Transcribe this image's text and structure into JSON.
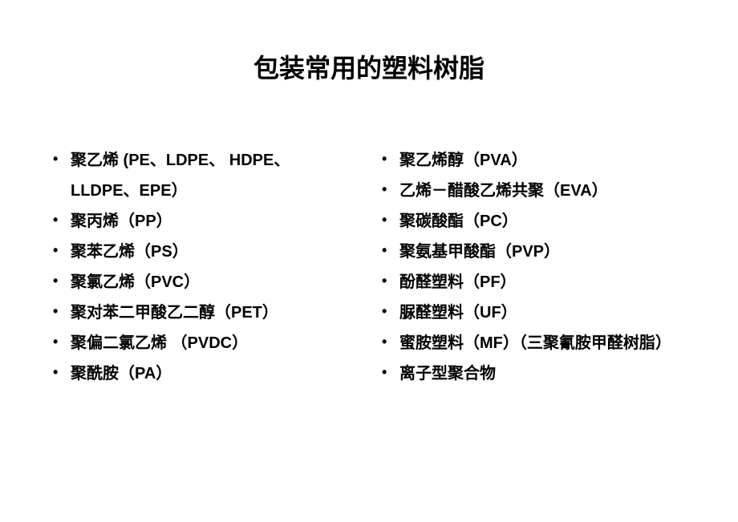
{
  "title": "包装常用的塑料树脂",
  "left_items": [
    "聚乙烯  (PE、LDPE、 HDPE、LLDPE、EPE）",
    "聚丙烯（PP）",
    "聚苯乙烯（PS）",
    "聚氯乙烯（PVC）",
    "聚对苯二甲酸乙二醇（PET）",
    "聚偏二氯乙烯 （PVDC）",
    "聚酰胺（PA）"
  ],
  "right_items": [
    "聚乙烯醇（PVA）",
    "乙烯－醋酸乙烯共聚（EVA）",
    "聚碳酸酯（PC）",
    "聚氨基甲酸酯（PVP）",
    "酚醛塑料（PF）",
    "脲醛塑料（UF）",
    "蜜胺塑料（MF）（三聚氰胺甲醛树脂）",
    "离子型聚合物"
  ],
  "styling": {
    "background_color": "#ffffff",
    "text_color": "#000000",
    "title_fontsize": 32,
    "item_fontsize": 20,
    "title_font": "SimHei",
    "body_font": "SimHei",
    "line_height": 1.9
  }
}
